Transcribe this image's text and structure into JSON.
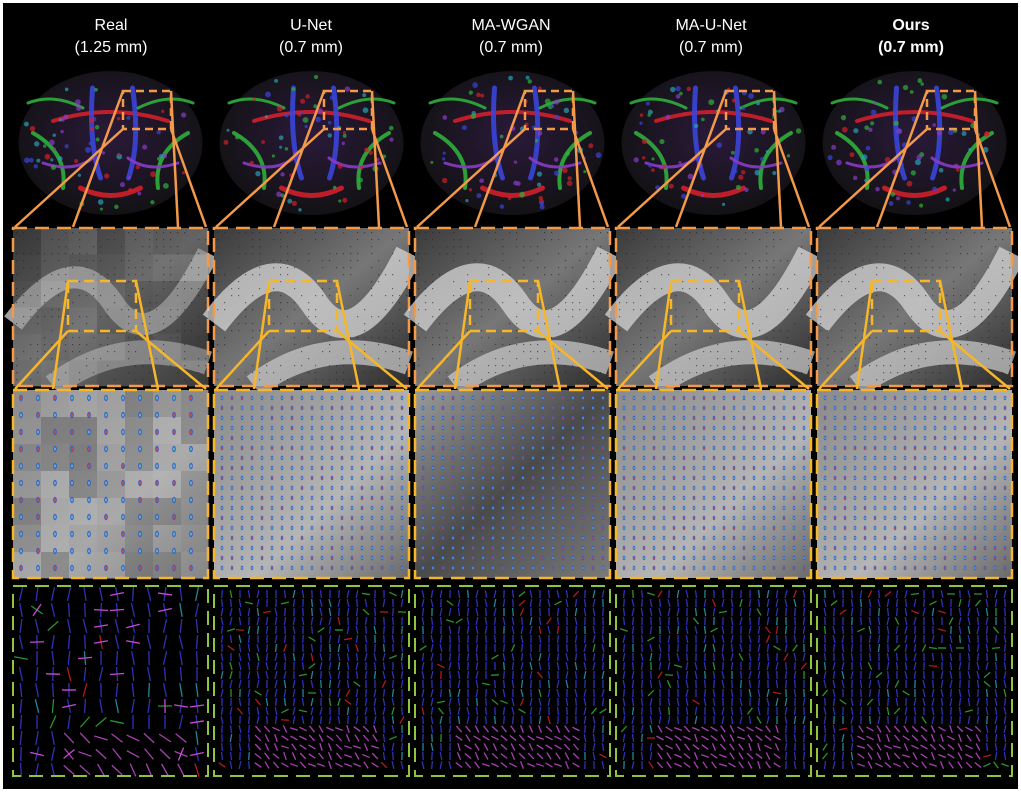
{
  "columns": [
    {
      "name": "Real",
      "resolution": "(1.25 mm)",
      "bold": false
    },
    {
      "name": "U-Net",
      "resolution": "(0.7 mm)",
      "bold": false
    },
    {
      "name": "MA-WGAN",
      "resolution": "(0.7 mm)",
      "bold": false
    },
    {
      "name": "MA-U-Net",
      "resolution": "(0.7 mm)",
      "bold": false
    },
    {
      "name": "Ours",
      "resolution": "(0.7 mm)",
      "bold": true
    }
  ],
  "rows": [
    "color-fa-coronal-slice",
    "grayscale-zoom-with-glyphs",
    "fod-glyph-zoom",
    "peak-direction-map"
  ],
  "colors": {
    "background": "#000000",
    "zoom1_border": "#f39a4a",
    "zoom2_border": "#f5b62a",
    "peak_border": "#8fc43e"
  }
}
